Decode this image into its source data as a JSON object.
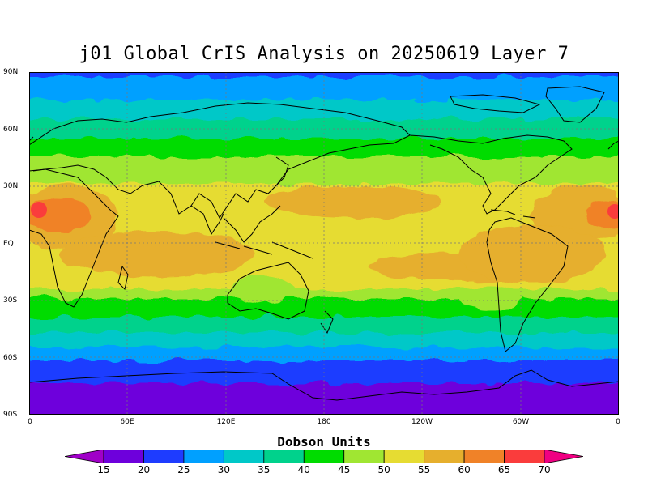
{
  "title": "j01 Global CrIS Analysis on 20250619 Layer 7",
  "map": {
    "lat_ticks": [
      "90N",
      "60N",
      "30N",
      "EQ",
      "30S",
      "60S",
      "90S"
    ],
    "lon_ticks": [
      "0",
      "60E",
      "120E",
      "180",
      "120W",
      "60W",
      "0"
    ],
    "grid": "dotted",
    "projection": "cylindrical equidistant"
  },
  "colorbar": {
    "title": "Dobson Units",
    "levels": [
      "15",
      "20",
      "25",
      "30",
      "35",
      "40",
      "45",
      "50",
      "55",
      "60",
      "65",
      "70"
    ],
    "colors": [
      "#a000c8",
      "#6e00dc",
      "#1e3cff",
      "#00a0ff",
      "#00c8c8",
      "#00d28c",
      "#00dc00",
      "#a0e632",
      "#e6dc32",
      "#e6af2d",
      "#f08228",
      "#fa3c3c",
      "#f00082"
    ]
  },
  "chart_data": {
    "type": "heatmap",
    "title": "j01 Global CrIS Analysis on 20250619 Layer 7",
    "colorbar_label": "Dobson Units",
    "zonal_bands": [
      {
        "lat": "90N-80N",
        "value": 25
      },
      {
        "lat": "80N-70N",
        "value": 30
      },
      {
        "lat": "70N-60N",
        "value": 35
      },
      {
        "lat": "60N-45N",
        "value": 40
      },
      {
        "lat": "45N-30N",
        "value": 45
      },
      {
        "lat": "30N-5N",
        "value": 55
      },
      {
        "lat": "5N-25S",
        "value": 55
      },
      {
        "lat": "25S-35S",
        "value": 45
      },
      {
        "lat": "35S-45S",
        "value": 40
      },
      {
        "lat": "45S-55S",
        "value": 35
      },
      {
        "lat": "55S-65S",
        "value": 25
      },
      {
        "lat": "65S-80S",
        "value": 20
      },
      {
        "lat": "80S-90S",
        "value": 15
      }
    ],
    "max_region": "West Africa / Sahara ~65-70",
    "xlim": [
      "0",
      "0"
    ],
    "ylim": [
      "90S",
      "90N"
    ]
  }
}
